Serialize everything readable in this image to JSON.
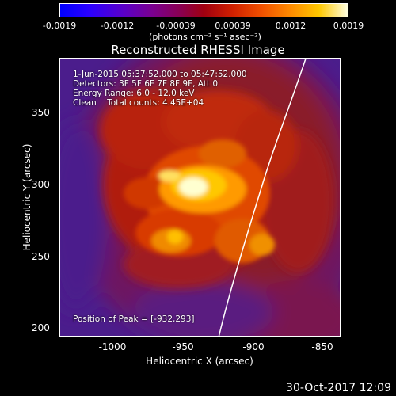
{
  "colorbar": {
    "tick_labels": [
      "-0.0019",
      "-0.0012",
      "-0.00039",
      "0.00039",
      "0.0012",
      "0.0019"
    ],
    "units": "(photons cm⁻² s⁻¹ asec⁻²)"
  },
  "title": "Reconstructed RHESSI Image",
  "info": {
    "time_range": "1-Jun-2015 05:37:52.000 to 05:47:52.000",
    "detectors": "Detectors: 3F 5F 6F 7F 8F 9F, Att 0",
    "energy": "Energy Range: 6.0 - 12.0 keV",
    "clean": "Clean    Total counts: 4.45E+04",
    "peak": "Position of Peak = [-932,293]"
  },
  "axes": {
    "x_label": "Heliocentric X (arcsec)",
    "y_label": "Heliocentric Y (arcsec)",
    "x_ticks": [
      "-1000",
      "-950",
      "-900",
      "-850"
    ],
    "y_ticks": [
      "350",
      "300",
      "250",
      "200"
    ]
  },
  "timestamp": "30-Oct-2017 12:09"
}
